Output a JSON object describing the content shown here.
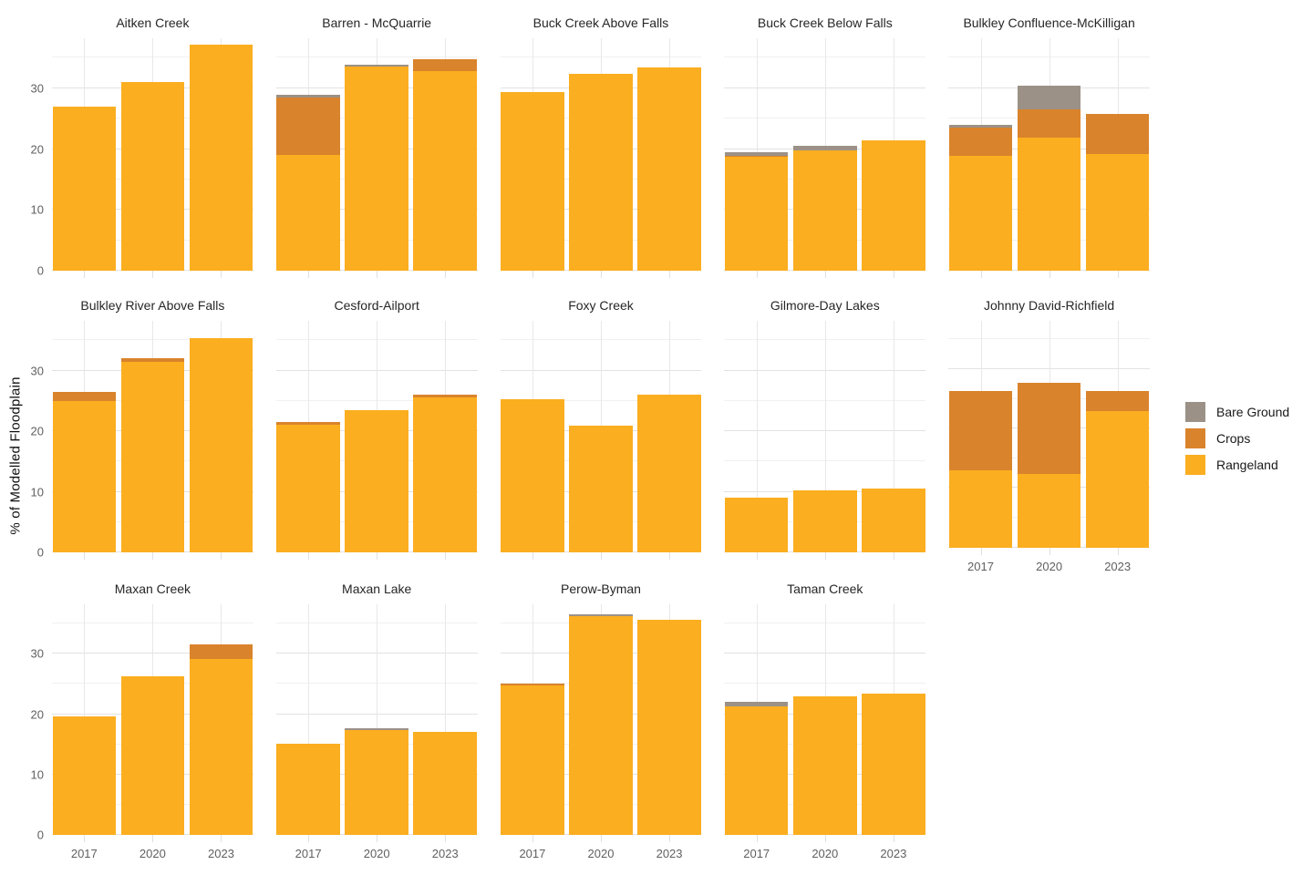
{
  "chart_data": {
    "type": "bar",
    "stacked": true,
    "faceted": true,
    "categories": [
      "2017",
      "2020",
      "2023"
    ],
    "ylabel": "% of Modelled Floodplain",
    "ylim": [
      0,
      38.2
    ],
    "yticks": [
      0,
      10,
      20,
      30
    ],
    "minor_gridlines": [
      5,
      15,
      25,
      35
    ],
    "grid": true,
    "legend_position": "right",
    "legend": [
      {
        "name": "Bare Ground",
        "key": "bare_ground",
        "color": "#9B9187"
      },
      {
        "name": "Crops",
        "key": "crops",
        "color": "#D9832C"
      },
      {
        "name": "Rangeland",
        "key": "rangeland",
        "color": "#FBAE20"
      }
    ],
    "facets": [
      {
        "title": "Aitken Creek",
        "row": 0,
        "show_y_labels": true,
        "show_x_labels": false,
        "rangeland": [
          26.9,
          31.0,
          37.2
        ],
        "crops": [
          0,
          0,
          0
        ],
        "bare_ground": [
          0,
          0,
          0
        ]
      },
      {
        "title": "Barren - McQuarrie",
        "row": 0,
        "show_y_labels": false,
        "show_x_labels": false,
        "rangeland": [
          19.0,
          33.5,
          32.8
        ],
        "crops": [
          9.4,
          0,
          1.9
        ],
        "bare_ground": [
          0.5,
          0.35,
          0
        ]
      },
      {
        "title": "Buck Creek Above Falls",
        "row": 0,
        "show_y_labels": false,
        "show_x_labels": false,
        "rangeland": [
          29.3,
          32.3,
          33.4
        ],
        "crops": [
          0,
          0,
          0
        ],
        "bare_ground": [
          0,
          0,
          0
        ]
      },
      {
        "title": "Buck Creek Below Falls",
        "row": 0,
        "show_y_labels": false,
        "show_x_labels": false,
        "rangeland": [
          18.7,
          19.7,
          21.4
        ],
        "crops": [
          0.25,
          0,
          0
        ],
        "bare_ground": [
          0.6,
          0.8,
          0
        ]
      },
      {
        "title": "Bulkley Confluence-McKilligan",
        "row": 0,
        "show_y_labels": false,
        "show_x_labels": false,
        "rangeland": [
          18.8,
          21.9,
          19.2
        ],
        "crops": [
          4.7,
          4.6,
          6.5
        ],
        "bare_ground": [
          0.45,
          3.9,
          0
        ]
      },
      {
        "title": "Bulkley River Above Falls",
        "row": 1,
        "show_y_labels": true,
        "show_x_labels": false,
        "rangeland": [
          24.9,
          31.4,
          35.3
        ],
        "crops": [
          1.6,
          0.7,
          0
        ],
        "bare_ground": [
          0,
          0,
          0
        ]
      },
      {
        "title": "Cesford-Ailport",
        "row": 1,
        "show_y_labels": false,
        "show_x_labels": false,
        "rangeland": [
          21.1,
          23.5,
          25.6
        ],
        "crops": [
          0.4,
          0,
          0.35
        ],
        "bare_ground": [
          0,
          0,
          0
        ]
      },
      {
        "title": "Foxy Creek",
        "row": 1,
        "show_y_labels": false,
        "show_x_labels": false,
        "rangeland": [
          25.2,
          20.9,
          26.0
        ],
        "crops": [
          0,
          0,
          0
        ],
        "bare_ground": [
          0,
          0,
          0
        ]
      },
      {
        "title": "Gilmore-Day Lakes",
        "row": 1,
        "show_y_labels": false,
        "show_x_labels": false,
        "rangeland": [
          9.1,
          10.3,
          10.6
        ],
        "crops": [
          0,
          0,
          0
        ],
        "bare_ground": [
          0,
          0,
          0
        ]
      },
      {
        "title": "Johnny David-Richfield",
        "row": 1,
        "show_y_labels": false,
        "show_x_labels": true,
        "rangeland": [
          13.0,
          12.4,
          23.0
        ],
        "crops": [
          13.3,
          15.3,
          3.3
        ],
        "bare_ground": [
          0,
          0,
          0
        ]
      },
      {
        "title": "Maxan Creek",
        "row": 2,
        "show_y_labels": true,
        "show_x_labels": true,
        "rangeland": [
          19.7,
          26.2,
          29.2
        ],
        "crops": [
          0,
          0,
          2.4
        ],
        "bare_ground": [
          0,
          0,
          0
        ]
      },
      {
        "title": "Maxan Lake",
        "row": 2,
        "show_y_labels": false,
        "show_x_labels": true,
        "rangeland": [
          15.1,
          17.4,
          17.1
        ],
        "crops": [
          0,
          0,
          0
        ],
        "bare_ground": [
          0,
          0.3,
          0
        ]
      },
      {
        "title": "Perow-Byman",
        "row": 2,
        "show_y_labels": false,
        "show_x_labels": true,
        "rangeland": [
          24.7,
          36.2,
          35.7
        ],
        "crops": [
          0.3,
          0,
          0
        ],
        "bare_ground": [
          0,
          0.4,
          0
        ]
      },
      {
        "title": "Taman Creek",
        "row": 2,
        "show_y_labels": false,
        "show_x_labels": true,
        "rangeland": [
          21.3,
          22.9,
          23.4
        ],
        "crops": [
          0,
          0,
          0
        ],
        "bare_ground": [
          0.8,
          0,
          0
        ]
      }
    ],
    "category_centers_pct": [
      16,
      50,
      84
    ]
  }
}
